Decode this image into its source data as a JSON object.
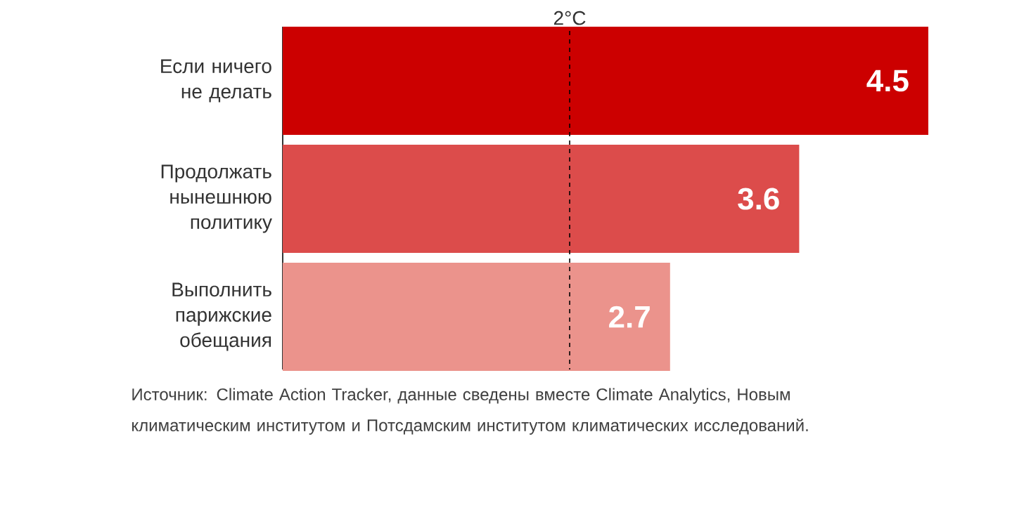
{
  "chart_data": {
    "type": "bar",
    "orientation": "horizontal",
    "categories": [
      "Если ничего не делать",
      "Продолжать нынешнюю политику",
      "Выполнить парижские обещания"
    ],
    "values": [
      4.5,
      3.6,
      2.7
    ],
    "colors": [
      "#cc0000",
      "#dc4c4b",
      "#eb938c"
    ],
    "data_labels": true,
    "ref_lines": [
      {
        "axis": "x",
        "value": 2,
        "label": "2°C",
        "line_style": "dashed"
      }
    ],
    "annotations": [
      "Источник: Climate Action Tracker, данные сведены вместе Climate Analytics, Новым климатическим институтом и Потсдамским институтом климатических исследований."
    ]
  }
}
